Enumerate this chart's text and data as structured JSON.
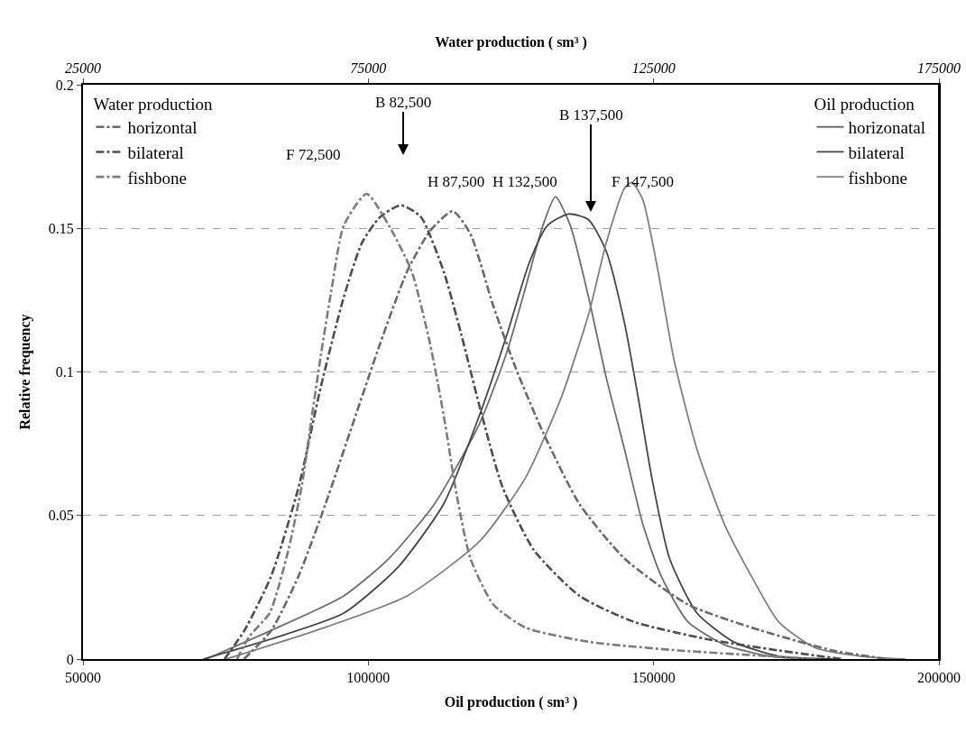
{
  "chart_data": {
    "type": "line",
    "xlabel": "Oil production ( sm³ )",
    "x2label": "Water production ( sm³ )",
    "ylabel": "Relative frequency",
    "legend_title": [
      "Water production",
      "Oil production"
    ],
    "xlim": [
      50000,
      200000
    ],
    "xticks": [
      50000,
      100000,
      150000,
      200000
    ],
    "x2lim": [
      25000,
      175000
    ],
    "x2ticks": [
      25000,
      75000,
      125000,
      175000
    ],
    "ylim": [
      0,
      0.2
    ],
    "yticks": [
      0,
      0.05,
      0.1,
      0.15,
      0.2
    ],
    "grid": "y",
    "legend": "top left",
    "marker": "none",
    "series": [
      {
        "name": "horizontal",
        "axis": "x2",
        "line_style": "dashed",
        "color": "#6a6a6a",
        "x": [
          53200,
          58000,
          62800,
          67500,
          72300,
          77100,
          81800,
          85800,
          89800,
          92900,
          96900,
          100900,
          105600,
          112000,
          119900,
          131000,
          143700,
          156400,
          165900
        ],
        "values": [
          0,
          0.01,
          0.029,
          0.054,
          0.082,
          0.11,
          0.135,
          0.149,
          0.156,
          0.148,
          0.123,
          0.101,
          0.079,
          0.054,
          0.035,
          0.019,
          0.01,
          0.003,
          0
        ]
      },
      {
        "name": "bilateral",
        "axis": "x2",
        "line_style": "dashed",
        "color": "#4d4d4d",
        "x": [
          49800,
          53300,
          58000,
          62800,
          66700,
          70700,
          73900,
          77100,
          80700,
          84200,
          88200,
          91300,
          94500,
          98500,
          104000,
          112000,
          121500,
          134200,
          146900,
          158000
        ],
        "values": [
          0,
          0.01,
          0.029,
          0.06,
          0.095,
          0.126,
          0.145,
          0.154,
          0.158,
          0.154,
          0.135,
          0.113,
          0.088,
          0.06,
          0.038,
          0.022,
          0.013,
          0.007,
          0.003,
          0
        ]
      },
      {
        "name": "fishbone",
        "axis": "x2",
        "line_style": "dashed",
        "color": "#7c7c7c",
        "x": [
          52000,
          54200,
          57700,
          61000,
          63400,
          65000,
          66700,
          68500,
          70700,
          74700,
          78600,
          82600,
          85800,
          88200,
          90500,
          92900,
          96900,
          102500,
          113600,
          129400,
          145300,
          153200
        ],
        "values": [
          0,
          0.008,
          0.016,
          0.038,
          0.061,
          0.083,
          0.106,
          0.128,
          0.151,
          0.162,
          0.151,
          0.135,
          0.11,
          0.085,
          0.057,
          0.035,
          0.019,
          0.011,
          0.006,
          0.003,
          0.001,
          0
        ]
      },
      {
        "name": "horizonatal",
        "line_style": "solid",
        "color": "#6e6e6e",
        "x": [
          71600,
          83000,
          95700,
          103600,
          111600,
          119500,
          124300,
          127500,
          130600,
          132800,
          135400,
          138600,
          141700,
          144900,
          148100,
          151300,
          156000,
          162400,
          170300,
          178200
        ],
        "values": [
          0,
          0.01,
          0.022,
          0.035,
          0.054,
          0.082,
          0.107,
          0.129,
          0.151,
          0.161,
          0.151,
          0.126,
          0.098,
          0.073,
          0.047,
          0.029,
          0.013,
          0.005,
          0.001,
          0
        ]
      },
      {
        "name": "bilateral",
        "line_style": "solid",
        "color": "#454545",
        "x": [
          71100,
          83000,
          95700,
          105200,
          113200,
          119500,
          124300,
          128200,
          131400,
          135100,
          138600,
          141700,
          144900,
          147300,
          149700,
          152800,
          157600,
          164000,
          171900,
          181400
        ],
        "values": [
          0,
          0.007,
          0.016,
          0.032,
          0.054,
          0.085,
          0.113,
          0.138,
          0.151,
          0.155,
          0.153,
          0.142,
          0.117,
          0.091,
          0.063,
          0.035,
          0.016,
          0.006,
          0.001,
          0
        ]
      },
      {
        "name": "fishbone",
        "line_style": "solid",
        "color": "#808080",
        "x": [
          75100,
          90900,
          106800,
          119500,
          127500,
          133800,
          138600,
          141700,
          144900,
          146200,
          148100,
          150500,
          153600,
          157600,
          162400,
          167100,
          171900,
          178200,
          186200,
          194100
        ],
        "values": [
          0,
          0.01,
          0.022,
          0.041,
          0.063,
          0.091,
          0.12,
          0.145,
          0.164,
          0.166,
          0.16,
          0.138,
          0.104,
          0.073,
          0.047,
          0.029,
          0.013,
          0.004,
          0.001,
          0
        ]
      }
    ],
    "annotations": [
      "F 72,500",
      "B 82,500",
      "H 87,500",
      "H 132,500",
      "B 137,500",
      "F 147,500"
    ]
  }
}
